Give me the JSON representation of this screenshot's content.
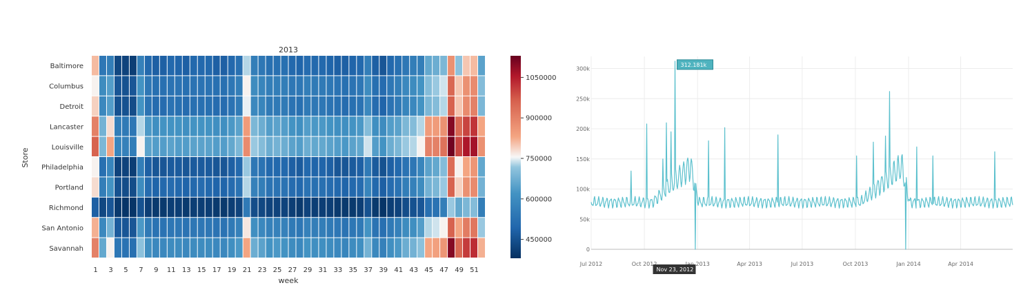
{
  "chart_data": [
    {
      "type": "heatmap",
      "title": "2013",
      "xlabel": "week",
      "ylabel": "Store",
      "rows": [
        "Baltimore",
        "Columbus",
        "Detroit",
        "Lancaster",
        "Louisville",
        "Philadelphia",
        "Portland",
        "Richmond",
        "San Antonio",
        "Savannah"
      ],
      "columns": [
        "1",
        "2",
        "3",
        "4",
        "5",
        "6",
        "7",
        "8",
        "9",
        "10",
        "11",
        "12",
        "13",
        "14",
        "15",
        "16",
        "17",
        "18",
        "19",
        "20",
        "21",
        "22",
        "23",
        "24",
        "25",
        "26",
        "27",
        "28",
        "29",
        "30",
        "31",
        "32",
        "33",
        "34",
        "35",
        "36",
        "37",
        "38",
        "39",
        "40",
        "41",
        "42",
        "43",
        "44",
        "45",
        "46",
        "47",
        "48",
        "49",
        "50",
        "51",
        "52"
      ],
      "x_tick_labels": [
        "1",
        "3",
        "5",
        "7",
        "9",
        "11",
        "13",
        "15",
        "17",
        "19",
        "21",
        "23",
        "25",
        "27",
        "29",
        "31",
        "33",
        "35",
        "37",
        "39",
        "41",
        "43",
        "45",
        "47",
        "49",
        "51"
      ],
      "colorbar": {
        "range": [
          380000,
          1130000
        ],
        "ticks": [
          450000,
          600000,
          750000,
          900000,
          1050000
        ],
        "tick_labels": [
          "450000",
          "600000",
          "750000",
          "900000",
          "1050000"
        ],
        "colormap": "RdBu_r"
      },
      "values": [
        [
          810000,
          540000,
          560000,
          430000,
          420000,
          410000,
          570000,
          500000,
          480000,
          480000,
          500000,
          490000,
          480000,
          500000,
          500000,
          500000,
          480000,
          480000,
          500000,
          520000,
          730000,
          560000,
          540000,
          520000,
          520000,
          520000,
          500000,
          490000,
          510000,
          500000,
          500000,
          490000,
          480000,
          480000,
          490000,
          500000,
          560000,
          480000,
          460000,
          500000,
          520000,
          540000,
          560000,
          560000,
          660000,
          670000,
          690000,
          870000,
          710000,
          800000,
          810000,
          650000
        ],
        [
          760000,
          600000,
          640000,
          460000,
          450000,
          460000,
          620000,
          540000,
          520000,
          520000,
          530000,
          530000,
          520000,
          530000,
          530000,
          530000,
          520000,
          520000,
          540000,
          560000,
          760000,
          600000,
          580000,
          560000,
          560000,
          560000,
          540000,
          540000,
          560000,
          550000,
          550000,
          540000,
          530000,
          520000,
          530000,
          540000,
          600000,
          520000,
          510000,
          540000,
          560000,
          590000,
          600000,
          620000,
          700000,
          720000,
          740000,
          950000,
          800000,
          870000,
          880000,
          700000
        ],
        [
          790000,
          590000,
          640000,
          450000,
          450000,
          440000,
          620000,
          530000,
          510000,
          510000,
          530000,
          520000,
          510000,
          520000,
          520000,
          520000,
          510000,
          510000,
          530000,
          550000,
          750000,
          590000,
          580000,
          550000,
          550000,
          550000,
          530000,
          520000,
          550000,
          540000,
          540000,
          530000,
          520000,
          510000,
          520000,
          530000,
          590000,
          510000,
          490000,
          530000,
          550000,
          580000,
          590000,
          620000,
          690000,
          700000,
          730000,
          960000,
          800000,
          880000,
          900000,
          690000
        ],
        [
          900000,
          680000,
          780000,
          560000,
          550000,
          540000,
          730000,
          630000,
          610000,
          620000,
          620000,
          620000,
          610000,
          620000,
          620000,
          620000,
          610000,
          610000,
          630000,
          650000,
          850000,
          690000,
          670000,
          640000,
          650000,
          640000,
          620000,
          610000,
          640000,
          630000,
          630000,
          620000,
          610000,
          610000,
          620000,
          630000,
          700000,
          610000,
          600000,
          640000,
          650000,
          690000,
          700000,
          730000,
          850000,
          850000,
          870000,
          1100000,
          950000,
          1000000,
          1020000,
          830000
        ],
        [
          960000,
          690000,
          830000,
          580000,
          570000,
          560000,
          760000,
          650000,
          640000,
          640000,
          650000,
          640000,
          640000,
          650000,
          650000,
          650000,
          640000,
          640000,
          660000,
          690000,
          880000,
          720000,
          700000,
          670000,
          680000,
          670000,
          650000,
          640000,
          670000,
          660000,
          660000,
          650000,
          640000,
          630000,
          650000,
          660000,
          740000,
          640000,
          620000,
          670000,
          690000,
          720000,
          730000,
          760000,
          900000,
          900000,
          930000,
          1120000,
          1000000,
          1060000,
          1070000,
          870000
        ],
        [
          760000,
          520000,
          580000,
          420000,
          420000,
          410000,
          560000,
          480000,
          460000,
          460000,
          470000,
          470000,
          460000,
          470000,
          470000,
          470000,
          460000,
          460000,
          480000,
          500000,
          720000,
          540000,
          530000,
          500000,
          500000,
          500000,
          480000,
          470000,
          500000,
          490000,
          490000,
          480000,
          460000,
          460000,
          470000,
          480000,
          550000,
          470000,
          450000,
          480000,
          500000,
          530000,
          540000,
          580000,
          650000,
          660000,
          700000,
          940000,
          760000,
          830000,
          860000,
          660000
        ],
        [
          780000,
          560000,
          620000,
          450000,
          440000,
          440000,
          600000,
          510000,
          490000,
          500000,
          510000,
          500000,
          490000,
          500000,
          510000,
          500000,
          490000,
          490000,
          510000,
          530000,
          730000,
          570000,
          560000,
          530000,
          530000,
          530000,
          510000,
          500000,
          530000,
          520000,
          520000,
          510000,
          500000,
          490000,
          500000,
          510000,
          580000,
          500000,
          480000,
          510000,
          530000,
          560000,
          570000,
          600000,
          680000,
          690000,
          720000,
          960000,
          790000,
          870000,
          880000,
          680000
        ],
        [
          480000,
          430000,
          460000,
          400000,
          390000,
          390000,
          450000,
          410000,
          400000,
          400000,
          410000,
          410000,
          400000,
          410000,
          410000,
          410000,
          400000,
          400000,
          410000,
          420000,
          550000,
          440000,
          430000,
          420000,
          420000,
          420000,
          410000,
          400000,
          420000,
          410000,
          410000,
          410000,
          400000,
          400000,
          400000,
          410000,
          450000,
          400000,
          390000,
          410000,
          420000,
          440000,
          450000,
          460000,
          520000,
          530000,
          560000,
          720000,
          660000,
          690000,
          700000,
          560000
        ],
        [
          820000,
          590000,
          680000,
          470000,
          460000,
          460000,
          630000,
          550000,
          530000,
          530000,
          540000,
          540000,
          530000,
          540000,
          540000,
          540000,
          530000,
          530000,
          550000,
          570000,
          770000,
          610000,
          590000,
          570000,
          570000,
          570000,
          550000,
          540000,
          570000,
          560000,
          560000,
          550000,
          540000,
          530000,
          540000,
          550000,
          620000,
          530000,
          520000,
          550000,
          570000,
          600000,
          610000,
          640000,
          730000,
          740000,
          760000,
          960000,
          830000,
          910000,
          920000,
          720000
        ],
        [
          900000,
          660000,
          760000,
          540000,
          530000,
          520000,
          710000,
          610000,
          590000,
          590000,
          600000,
          600000,
          590000,
          600000,
          600000,
          600000,
          590000,
          590000,
          610000,
          630000,
          830000,
          670000,
          650000,
          620000,
          630000,
          620000,
          600000,
          590000,
          620000,
          610000,
          610000,
          600000,
          590000,
          580000,
          600000,
          610000,
          680000,
          590000,
          570000,
          610000,
          630000,
          670000,
          680000,
          710000,
          830000,
          840000,
          860000,
          1100000,
          950000,
          1010000,
          1030000,
          820000
        ]
      ]
    },
    {
      "type": "line",
      "series_color": "#5bc0cd",
      "x_range": [
        "2012-07-01",
        "2014-06-30"
      ],
      "y_range": [
        0,
        320000
      ],
      "y_ticks": [
        0,
        50000,
        100000,
        150000,
        200000,
        250000,
        300000
      ],
      "y_tick_labels": [
        "0",
        "50k",
        "100k",
        "150k",
        "200k",
        "250k",
        "300k"
      ],
      "x_ticks": [
        "2012-07-01",
        "2012-10-01",
        "2013-01-01",
        "2013-04-01",
        "2013-07-01",
        "2013-10-01",
        "2014-01-01",
        "2014-04-01"
      ],
      "x_tick_labels": [
        "Jul 2012",
        "Oct 2012",
        "Jan 2013",
        "Apr 2013",
        "Jul 2013",
        "Oct 2013",
        "Jan 2014",
        "Apr 2014"
      ],
      "tooltip_value": "312.181k",
      "tooltip_date_label": "Nov 23, 2012",
      "tooltip_date": "2012-11-23",
      "spikes": [
        {
          "date": "2012-09-08",
          "value": 130000
        },
        {
          "date": "2012-10-05",
          "value": 208000
        },
        {
          "date": "2012-11-02",
          "value": 150000
        },
        {
          "date": "2012-11-08",
          "value": 210000
        },
        {
          "date": "2012-11-16",
          "value": 195000
        },
        {
          "date": "2012-11-23",
          "value": 312181
        },
        {
          "date": "2012-12-28",
          "value": 0
        },
        {
          "date": "2013-01-20",
          "value": 180000
        },
        {
          "date": "2013-02-17",
          "value": 202000
        },
        {
          "date": "2013-05-20",
          "value": 190000
        },
        {
          "date": "2013-10-03",
          "value": 155000
        },
        {
          "date": "2013-11-01",
          "value": 178000
        },
        {
          "date": "2013-11-22",
          "value": 188000
        },
        {
          "date": "2013-11-29",
          "value": 262000
        },
        {
          "date": "2013-12-27",
          "value": 0
        },
        {
          "date": "2014-01-15",
          "value": 170000
        },
        {
          "date": "2014-02-12",
          "value": 155000
        },
        {
          "date": "2014-05-30",
          "value": 162000
        }
      ]
    }
  ]
}
